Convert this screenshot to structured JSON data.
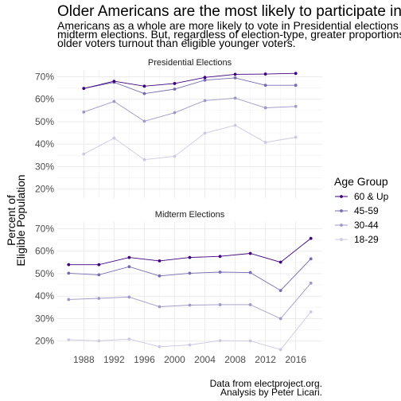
{
  "chart_data": {
    "type": "line",
    "title": "Older Americans are the most likely to participate in Federal Elections",
    "subtitle": [
      "Americans as a whole are more likely to vote in Presidential elections than",
      "midterm elections. But, regardless of election-type, greater proportions of",
      "older voters turnout than eligible younger voters."
    ],
    "ylabel": [
      "Percent of",
      "Eligible Population"
    ],
    "caption": [
      "Data from electproject.org.",
      "Analysis by Peter Licari."
    ],
    "legend": {
      "title": "Age Group",
      "position": "right"
    },
    "colors": {
      "60 & Up": "#3f007d",
      "45-59": "#756bb1",
      "30-44": "#9e9ac8",
      "18-29": "#cbc9e2"
    },
    "ylim": [
      0.16,
      0.73
    ],
    "yticks": [
      0.2,
      0.3,
      0.4,
      0.5,
      0.6,
      0.7
    ],
    "ytick_labels": [
      "20%",
      "30%",
      "40%",
      "50%",
      "60%",
      "70%"
    ],
    "xlim": [
      1984.5,
      2019.5
    ],
    "xticks": [
      1988,
      1992,
      1996,
      2000,
      2004,
      2008,
      2012,
      2016
    ],
    "grid": true,
    "panels": [
      {
        "label": "Presidential Elections",
        "x": [
          1988,
          1992,
          1996,
          2000,
          2004,
          2008,
          2012,
          2016
        ],
        "series": [
          {
            "name": "60 & Up",
            "values": [
              0.648,
              0.68,
              0.658,
              0.67,
              0.697,
              0.711,
              0.712,
              0.715
            ]
          },
          {
            "name": "45-59",
            "values": [
              0.648,
              0.675,
              0.625,
              0.645,
              0.685,
              0.695,
              0.662,
              0.662
            ]
          },
          {
            "name": "30-44",
            "values": [
              0.543,
              0.59,
              0.502,
              0.54,
              0.594,
              0.605,
              0.562,
              0.568
            ]
          },
          {
            "name": "18-29",
            "values": [
              0.356,
              0.427,
              0.331,
              0.346,
              0.449,
              0.484,
              0.408,
              0.431
            ]
          }
        ]
      },
      {
        "label": "Midterm Elections",
        "x": [
          1986,
          1990,
          1994,
          1998,
          2002,
          2006,
          2010,
          2014,
          2018
        ],
        "series": [
          {
            "name": "60 & Up",
            "values": [
              0.54,
              0.54,
              0.572,
              0.557,
              0.572,
              0.577,
              0.59,
              0.551,
              0.657
            ]
          },
          {
            "name": "45-59",
            "values": [
              0.502,
              0.495,
              0.531,
              0.49,
              0.502,
              0.507,
              0.505,
              0.425,
              0.566
            ]
          },
          {
            "name": "30-44",
            "values": [
              0.385,
              0.39,
              0.396,
              0.353,
              0.36,
              0.362,
              0.362,
              0.3,
              0.458
            ]
          },
          {
            "name": "18-29",
            "values": [
              0.206,
              0.201,
              0.209,
              0.175,
              0.183,
              0.202,
              0.201,
              0.162,
              0.33
            ]
          }
        ]
      }
    ]
  }
}
